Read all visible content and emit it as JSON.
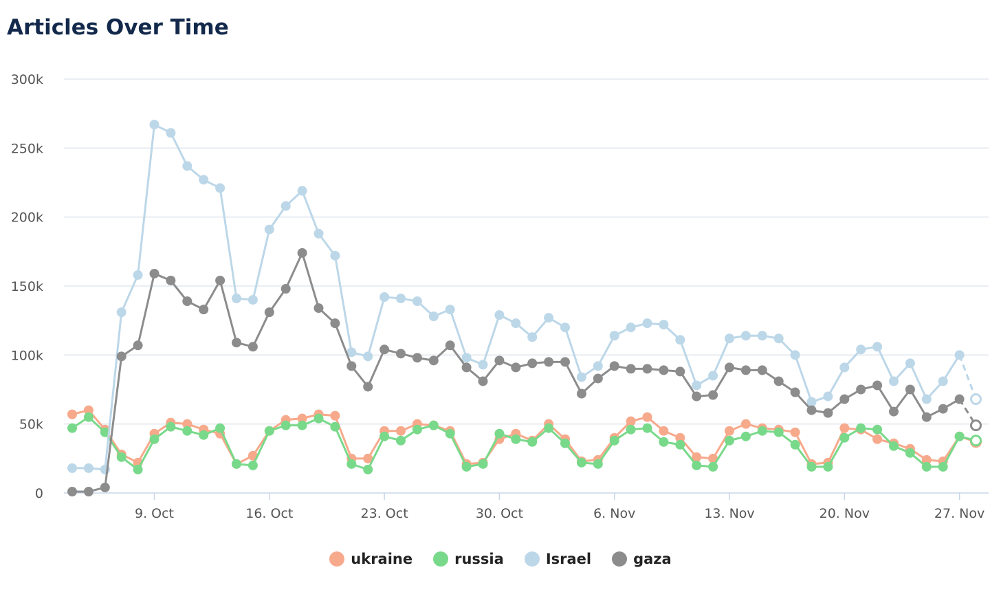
{
  "page": {
    "title": "Articles Over Time"
  },
  "chart_data": {
    "type": "line",
    "title": "Articles Over Time",
    "xlabel": "",
    "ylabel": "",
    "ylim": [
      0,
      300000
    ],
    "grid": true,
    "legend_position": "bottom-center",
    "y_ticks": [
      0,
      50000,
      100000,
      150000,
      200000,
      250000,
      300000
    ],
    "y_tick_labels": [
      "0",
      "50k",
      "100k",
      "150k",
      "200k",
      "250k",
      "300k"
    ],
    "x_tick_labels": [
      "9. Oct",
      "16. Oct",
      "23. Oct",
      "30. Oct",
      "6. Nov",
      "13. Nov",
      "20. Nov",
      "27. Nov"
    ],
    "x_tick_dates": [
      "2023-10-09",
      "2023-10-16",
      "2023-10-23",
      "2023-10-30",
      "2023-11-06",
      "2023-11-13",
      "2023-11-20",
      "2023-11-27"
    ],
    "x": [
      "2023-10-04",
      "2023-10-05",
      "2023-10-06",
      "2023-10-07",
      "2023-10-08",
      "2023-10-09",
      "2023-10-10",
      "2023-10-11",
      "2023-10-12",
      "2023-10-13",
      "2023-10-14",
      "2023-10-15",
      "2023-10-16",
      "2023-10-17",
      "2023-10-18",
      "2023-10-19",
      "2023-10-20",
      "2023-10-21",
      "2023-10-22",
      "2023-10-23",
      "2023-10-24",
      "2023-10-25",
      "2023-10-26",
      "2023-10-27",
      "2023-10-28",
      "2023-10-29",
      "2023-10-30",
      "2023-10-31",
      "2023-11-01",
      "2023-11-02",
      "2023-11-03",
      "2023-11-04",
      "2023-11-05",
      "2023-11-06",
      "2023-11-07",
      "2023-11-08",
      "2023-11-09",
      "2023-11-10",
      "2023-11-11",
      "2023-11-12",
      "2023-11-13",
      "2023-11-14",
      "2023-11-15",
      "2023-11-16",
      "2023-11-17",
      "2023-11-18",
      "2023-11-19",
      "2023-11-20",
      "2023-11-21",
      "2023-11-22",
      "2023-11-23",
      "2023-11-24",
      "2023-11-25",
      "2023-11-26",
      "2023-11-27",
      "2023-11-28"
    ],
    "series": [
      {
        "name": "ukraine",
        "color": "#f7a98b",
        "values": [
          57000,
          60000,
          46000,
          28000,
          22000,
          43000,
          51000,
          50000,
          46000,
          43000,
          21000,
          27000,
          45000,
          53000,
          54000,
          57000,
          56000,
          25000,
          25000,
          45000,
          45000,
          50000,
          49000,
          45000,
          21000,
          22000,
          39000,
          43000,
          38000,
          50000,
          39000,
          23000,
          24000,
          40000,
          52000,
          55000,
          45000,
          40000,
          26000,
          25000,
          45000,
          50000,
          47000,
          46000,
          44000,
          21000,
          22000,
          47000,
          46000,
          39000,
          36000,
          32000,
          24000,
          23000,
          41000,
          37000
        ],
        "hollow_index": 55
      },
      {
        "name": "russia",
        "color": "#79d98a",
        "values": [
          47000,
          55000,
          44000,
          26000,
          17000,
          39000,
          48000,
          45000,
          42000,
          47000,
          21000,
          20000,
          45000,
          49000,
          49000,
          54000,
          48000,
          21000,
          17000,
          41000,
          38000,
          46000,
          49000,
          43000,
          19000,
          21000,
          43000,
          39000,
          37000,
          47000,
          36000,
          22000,
          21000,
          38000,
          46000,
          47000,
          37000,
          35000,
          20000,
          19000,
          38000,
          41000,
          45000,
          44000,
          35000,
          19000,
          19000,
          40000,
          47000,
          46000,
          34000,
          29000,
          19000,
          19000,
          41000,
          38000
        ],
        "hollow_index": 55
      },
      {
        "name": "Israel",
        "color": "#bcd7e8",
        "values": [
          18000,
          18000,
          17000,
          131000,
          158000,
          267000,
          261000,
          237000,
          227000,
          221000,
          141000,
          140000,
          191000,
          208000,
          219000,
          188000,
          172000,
          102000,
          99000,
          142000,
          141000,
          139000,
          128000,
          133000,
          98000,
          93000,
          129000,
          123000,
          113000,
          127000,
          120000,
          84000,
          92000,
          114000,
          120000,
          123000,
          122000,
          111000,
          78000,
          85000,
          112000,
          114000,
          114000,
          112000,
          100000,
          66000,
          70000,
          91000,
          104000,
          106000,
          81000,
          94000,
          68000,
          81000,
          100000,
          68000
        ],
        "hollow_index": 55,
        "dashed_from": 54
      },
      {
        "name": "gaza",
        "color": "#8c8c8c",
        "values": [
          1000,
          1000,
          4000,
          99000,
          107000,
          159000,
          154000,
          139000,
          133000,
          154000,
          109000,
          106000,
          131000,
          148000,
          174000,
          134000,
          123000,
          92000,
          77000,
          104000,
          101000,
          98000,
          96000,
          107000,
          91000,
          81000,
          96000,
          91000,
          94000,
          95000,
          95000,
          72000,
          83000,
          92000,
          90000,
          90000,
          89000,
          88000,
          70000,
          71000,
          91000,
          89000,
          89000,
          81000,
          73000,
          60000,
          58000,
          68000,
          75000,
          78000,
          59000,
          75000,
          55000,
          61000,
          68000,
          49000
        ],
        "hollow_index": 55,
        "dashed_from": 54
      }
    ]
  }
}
